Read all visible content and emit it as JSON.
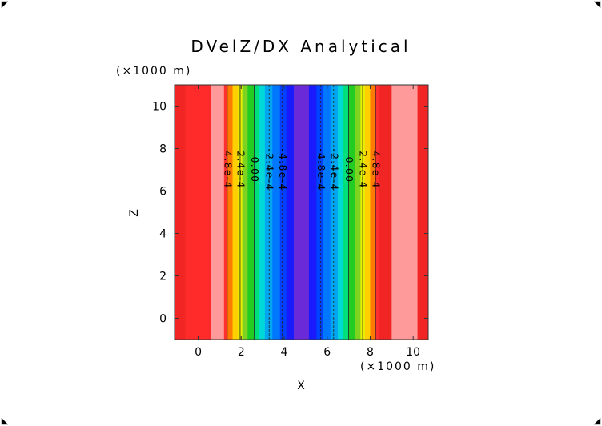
{
  "chart_data": {
    "type": "heatmap",
    "title": "DVelZ/DX Analytical",
    "xlabel": "X",
    "ylabel": "Z",
    "x_unit": "(×1000 m)",
    "y_unit": "(×1000 m)",
    "xlim": [
      -1.1,
      10.7
    ],
    "ylim": [
      -1.0,
      11.0
    ],
    "xticks": [
      "0",
      "2",
      "4",
      "6",
      "8",
      "10"
    ],
    "yticks": [
      "0",
      "2",
      "4",
      "6",
      "8",
      "10"
    ],
    "bands": [
      {
        "x0": -1.1,
        "x1": -0.6,
        "color": "#f22525"
      },
      {
        "x0": -0.6,
        "x1": 0.6,
        "color": "#ff2b2b"
      },
      {
        "x0": 0.6,
        "x1": 1.2,
        "color": "#ff9a9a"
      },
      {
        "x0": 1.2,
        "x1": 1.35,
        "color": "#ff3030"
      },
      {
        "x0": 1.35,
        "x1": 1.6,
        "color": "#ff7a00"
      },
      {
        "x0": 1.6,
        "x1": 1.85,
        "color": "#ffd000"
      },
      {
        "x0": 1.85,
        "x1": 2.05,
        "color": "#e6f000"
      },
      {
        "x0": 2.05,
        "x1": 2.3,
        "color": "#7ed321"
      },
      {
        "x0": 2.3,
        "x1": 2.6,
        "color": "#22cc22"
      },
      {
        "x0": 2.6,
        "x1": 2.85,
        "color": "#00e07a"
      },
      {
        "x0": 2.85,
        "x1": 3.1,
        "color": "#00d8d8"
      },
      {
        "x0": 3.1,
        "x1": 3.45,
        "color": "#00a6f0"
      },
      {
        "x0": 3.45,
        "x1": 3.8,
        "color": "#0077ff"
      },
      {
        "x0": 3.8,
        "x1": 4.1,
        "color": "#0040ff"
      },
      {
        "x0": 4.1,
        "x1": 4.45,
        "color": "#1a1aff"
      },
      {
        "x0": 4.45,
        "x1": 5.15,
        "color": "#6a2ad8"
      },
      {
        "x0": 5.15,
        "x1": 5.5,
        "color": "#1a1aff"
      },
      {
        "x0": 5.5,
        "x1": 5.8,
        "color": "#0040ff"
      },
      {
        "x0": 5.8,
        "x1": 6.15,
        "color": "#0077ff"
      },
      {
        "x0": 6.15,
        "x1": 6.5,
        "color": "#00a6f0"
      },
      {
        "x0": 6.5,
        "x1": 6.75,
        "color": "#00d8d8"
      },
      {
        "x0": 6.75,
        "x1": 7.0,
        "color": "#00e07a"
      },
      {
        "x0": 7.0,
        "x1": 7.3,
        "color": "#22cc22"
      },
      {
        "x0": 7.3,
        "x1": 7.55,
        "color": "#7ed321"
      },
      {
        "x0": 7.55,
        "x1": 7.75,
        "color": "#e6f000"
      },
      {
        "x0": 7.75,
        "x1": 8.0,
        "color": "#ffd000"
      },
      {
        "x0": 8.0,
        "x1": 8.25,
        "color": "#ff7a00"
      },
      {
        "x0": 8.25,
        "x1": 8.4,
        "color": "#ff3030"
      },
      {
        "x0": 8.4,
        "x1": 9.0,
        "color": "#f22525"
      },
      {
        "x0": 9.0,
        "x1": 10.2,
        "color": "#ff9a9a"
      },
      {
        "x0": 10.2,
        "x1": 10.7,
        "color": "#f22525"
      }
    ],
    "contours": [
      {
        "x": 1.35,
        "label": "4.8e-4"
      },
      {
        "x": 1.95,
        "label": "2.4e-4"
      },
      {
        "x": 2.6,
        "label": "0.00"
      },
      {
        "x": 3.3,
        "label": "-2.4e-4"
      },
      {
        "x": 3.9,
        "label": "-4.8e-4"
      },
      {
        "x": 5.7,
        "label": "-4.8e-4"
      },
      {
        "x": 6.3,
        "label": "-2.4e-4"
      },
      {
        "x": 7.0,
        "label": "0.00"
      },
      {
        "x": 7.65,
        "label": "2.4e-4"
      },
      {
        "x": 8.25,
        "label": "4.8e-4"
      }
    ],
    "contour_label_z": 7.0,
    "grid": false,
    "legend": "none"
  }
}
